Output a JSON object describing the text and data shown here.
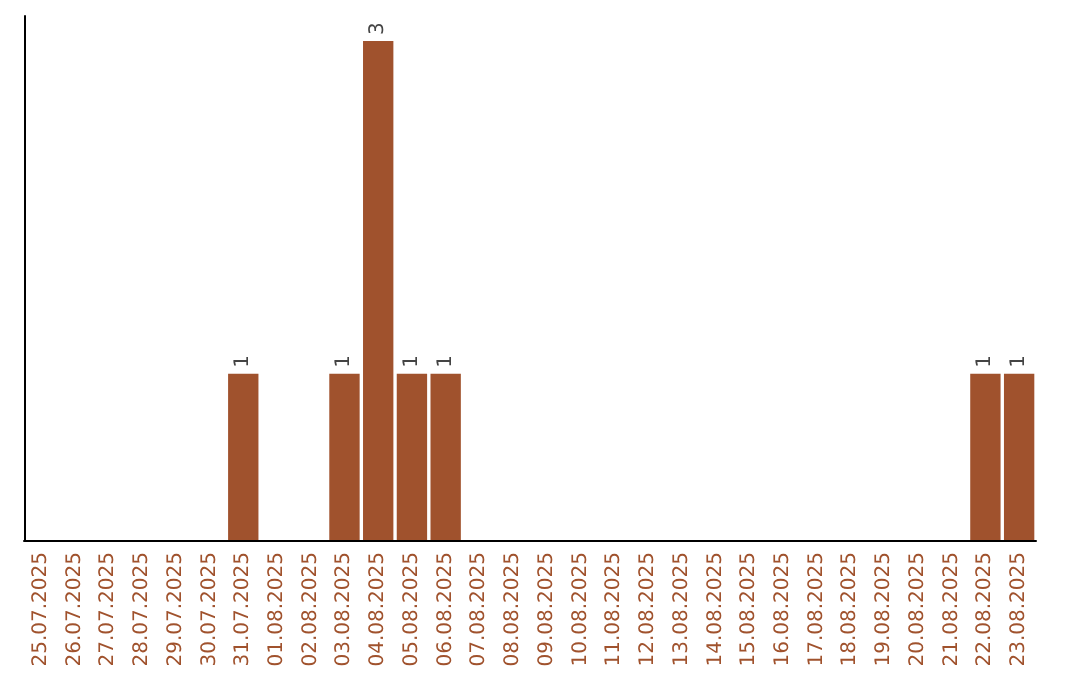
{
  "chart_data": {
    "type": "bar",
    "categories": [
      "25.07.2025",
      "26.07.2025",
      "27.07.2025",
      "28.07.2025",
      "29.07.2025",
      "30.07.2025",
      "31.07.2025",
      "01.08.2025",
      "02.08.2025",
      "03.08.2025",
      "04.08.2025",
      "05.08.2025",
      "06.08.2025",
      "07.08.2025",
      "08.08.2025",
      "09.08.2025",
      "10.08.2025",
      "11.08.2025",
      "12.08.2025",
      "13.08.2025",
      "14.08.2025",
      "15.08.2025",
      "16.08.2025",
      "17.08.2025",
      "18.08.2025",
      "19.08.2025",
      "20.08.2025",
      "21.08.2025",
      "22.08.2025",
      "23.08.2025"
    ],
    "values": [
      0,
      0,
      0,
      0,
      0,
      0,
      1,
      0,
      0,
      1,
      3,
      1,
      1,
      0,
      0,
      0,
      0,
      0,
      0,
      0,
      0,
      0,
      0,
      0,
      0,
      0,
      0,
      0,
      1,
      1
    ],
    "color": "#a0522d",
    "value_labels": [
      null,
      null,
      null,
      null,
      null,
      null,
      "1",
      null,
      null,
      "1",
      "3",
      "1",
      "1",
      null,
      null,
      null,
      null,
      null,
      null,
      null,
      null,
      null,
      null,
      null,
      null,
      null,
      null,
      null,
      "1",
      "1"
    ],
    "tick_labels": "x"
  }
}
